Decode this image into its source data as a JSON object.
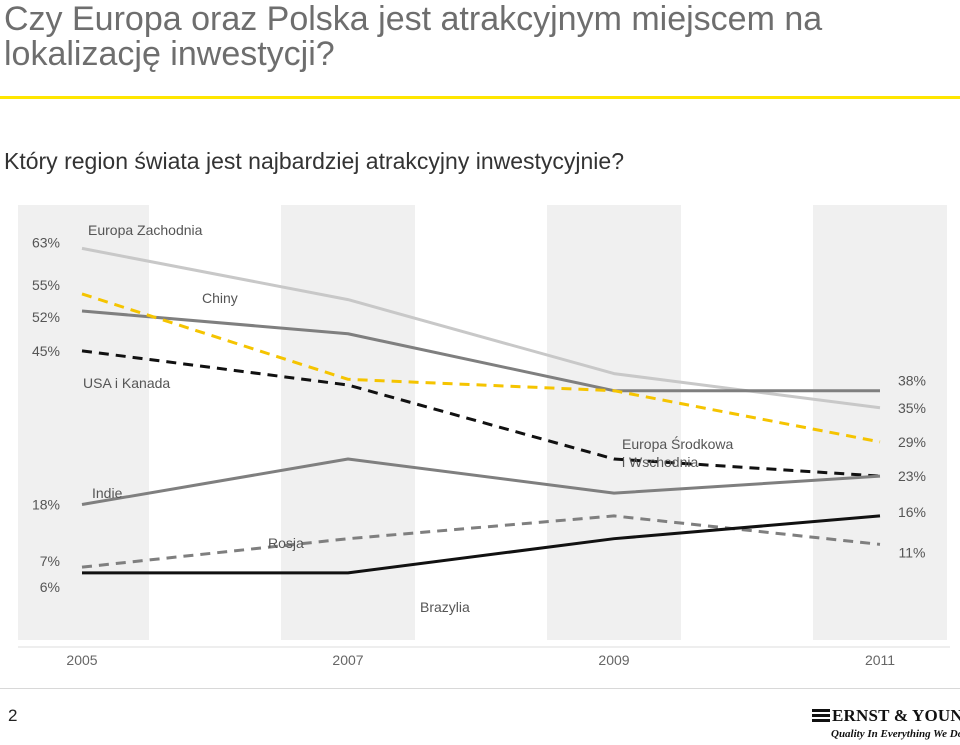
{
  "slide": {
    "title": "Czy Europa oraz Polska jest atrakcyjnym miejscem na lokalizację inwestycji?",
    "question": "Który region świata jest najbardziej atrakcyjny inwestycyjnie?",
    "page_number": "2"
  },
  "logo": {
    "name": "ERNST & YOUNG",
    "tagline": "Quality In Everything We Do",
    "mark_icon": "ey-bars-icon"
  },
  "chart_data": {
    "type": "line",
    "x": [
      2005,
      2007,
      2009,
      2011
    ],
    "x_tick_labels": [
      "2005",
      "2007",
      "2009",
      "2011"
    ],
    "ylim": [
      0,
      65
    ],
    "grid": false,
    "series": [
      {
        "name": "Europa Zachodnia",
        "values": [
          63,
          54,
          41,
          35
        ],
        "color": "#c8c8c8",
        "dash": false,
        "start_label": "63%",
        "end_label": "35%"
      },
      {
        "name": "Chiny",
        "values": [
          52,
          48,
          38,
          38
        ],
        "color": "#7f7f7f",
        "dash": false,
        "start_label": "52%",
        "end_label": "38%"
      },
      {
        "name": "Europa Środkowa i Wschodnia",
        "values": [
          55,
          40,
          38,
          29
        ],
        "color": "#f5c400",
        "dash": true,
        "start_label": "55%",
        "end_label": "29%"
      },
      {
        "name": "USA i Kanada",
        "values": [
          45,
          39,
          26,
          23
        ],
        "color": "#111111",
        "dash": true,
        "start_label": "45%",
        "end_label": "23%"
      },
      {
        "name": "Indie",
        "values": [
          18,
          26,
          20,
          23
        ],
        "color": "#7f7f7f",
        "dash": false,
        "start_label": "18%",
        "end_label": ""
      },
      {
        "name": "Rosja",
        "values": [
          7,
          12,
          16,
          11
        ],
        "color": "#7f7f7f",
        "dash": true,
        "start_label": "7%",
        "end_label": "11%"
      },
      {
        "name": "Brazylia",
        "values": [
          6,
          6,
          12,
          16
        ],
        "color": "#111111",
        "dash": false,
        "start_label": "6%",
        "end_label": "16%"
      }
    ]
  }
}
